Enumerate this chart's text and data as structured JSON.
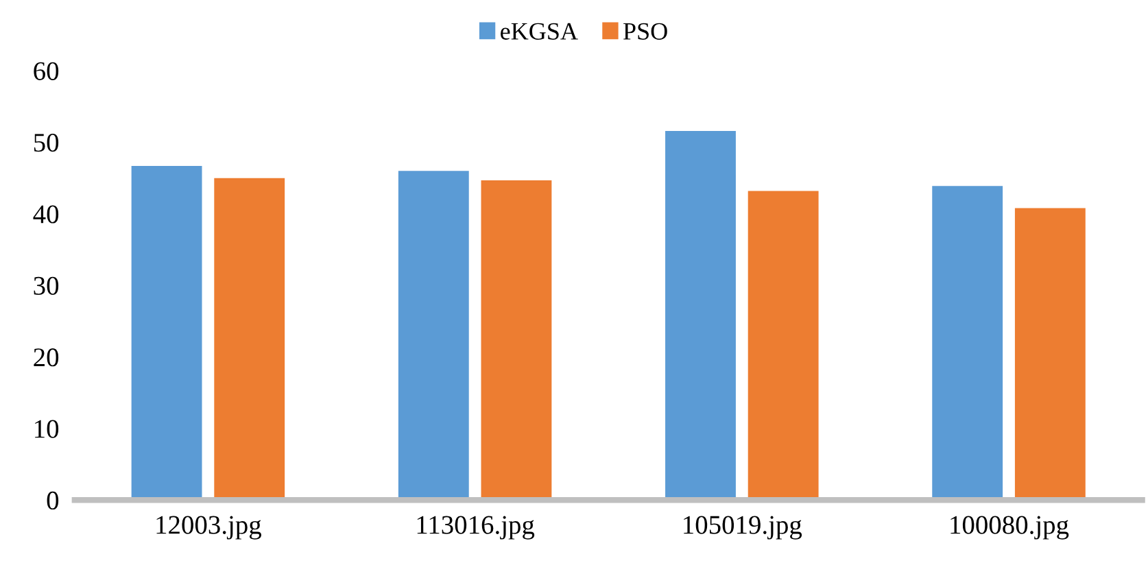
{
  "chart_data": {
    "type": "bar",
    "categories": [
      "12003.jpg",
      "113016.jpg",
      "105019.jpg",
      "100080.jpg"
    ],
    "series": [
      {
        "name": "eKGSA",
        "color": "#5b9bd5",
        "values": [
          46.6,
          45.9,
          51.5,
          43.8
        ]
      },
      {
        "name": "PSO",
        "color": "#ed7d31",
        "values": [
          44.9,
          44.6,
          43.1,
          40.7
        ]
      }
    ],
    "ylim": [
      0,
      60
    ],
    "yticks": [
      0,
      10,
      20,
      30,
      40,
      50,
      60
    ],
    "grid": false,
    "legend": "top"
  }
}
